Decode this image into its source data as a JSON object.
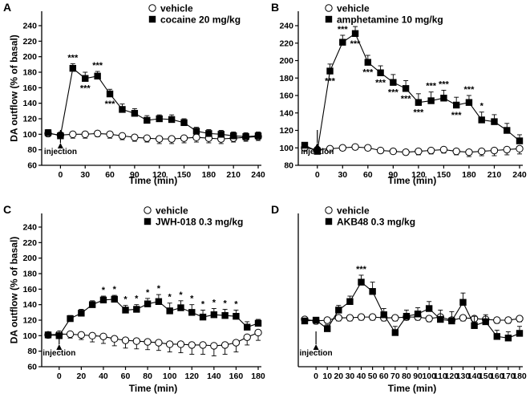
{
  "chart_data": [
    {
      "type": "line",
      "panel": "A",
      "ylabel": "DA outflow (% of basal)",
      "xlabel": "Time (min)",
      "xlim": [
        -15,
        240
      ],
      "ylim": [
        60,
        240
      ],
      "xticks": [
        0,
        30,
        60,
        90,
        120,
        150,
        180,
        210,
        240
      ],
      "yticks": [
        60,
        80,
        100,
        120,
        140,
        160,
        180,
        200,
        220,
        240
      ],
      "annotation": "injection",
      "annotation_x": 0,
      "series": [
        {
          "name": "vehicle",
          "marker": "open-circle",
          "x": [
            -15,
            0,
            15,
            30,
            45,
            60,
            75,
            90,
            105,
            120,
            135,
            150,
            165,
            180,
            195,
            210,
            225,
            240
          ],
          "y": [
            101,
            99,
            100,
            100,
            101,
            100,
            98,
            96,
            95,
            94,
            94,
            95,
            96,
            95,
            94,
            95,
            96,
            97
          ],
          "err": [
            4,
            4,
            5,
            5,
            4,
            5,
            5,
            5,
            5,
            6,
            6,
            6,
            6,
            6,
            6,
            5,
            5,
            5
          ]
        },
        {
          "name": "cocaine 20 mg/kg",
          "marker": "filled-square",
          "x": [
            -15,
            0,
            15,
            30,
            45,
            60,
            75,
            90,
            105,
            120,
            135,
            150,
            165,
            180,
            195,
            210,
            225,
            240
          ],
          "y": [
            102,
            98,
            185,
            172,
            175,
            152,
            132,
            127,
            118,
            120,
            119,
            115,
            104,
            101,
            100,
            98,
            97,
            98
          ],
          "err": [
            4,
            4,
            6,
            8,
            6,
            6,
            7,
            6,
            6,
            5,
            6,
            5,
            5,
            5,
            5,
            5,
            5,
            5
          ]
        }
      ],
      "significance": [
        {
          "x": 15,
          "label": "***",
          "pos": "above"
        },
        {
          "x": 30,
          "label": "***",
          "pos": "below"
        },
        {
          "x": 45,
          "label": "***",
          "pos": "above"
        },
        {
          "x": 60,
          "label": "***",
          "pos": "below"
        }
      ]
    },
    {
      "type": "line",
      "panel": "B",
      "ylabel": "",
      "xlabel": "Time (min)",
      "xlim": [
        -15,
        240
      ],
      "ylim": [
        80,
        240
      ],
      "xticks": [
        0,
        30,
        60,
        90,
        120,
        150,
        180,
        210,
        240
      ],
      "yticks": [
        80,
        100,
        120,
        140,
        160,
        180,
        200,
        220,
        240
      ],
      "annotation": "injection",
      "annotation_x": 0,
      "series": [
        {
          "name": "vehicle",
          "marker": "open-circle",
          "x": [
            -15,
            0,
            15,
            30,
            45,
            60,
            75,
            90,
            105,
            120,
            135,
            150,
            165,
            180,
            195,
            210,
            225,
            240
          ],
          "y": [
            100,
            98,
            99,
            100,
            101,
            100,
            97,
            96,
            95,
            96,
            97,
            98,
            96,
            95,
            96,
            97,
            98,
            99
          ],
          "err": [
            3,
            3,
            3,
            3,
            3,
            3,
            3,
            3,
            3,
            4,
            4,
            4,
            4,
            5,
            5,
            6,
            6,
            6
          ]
        },
        {
          "name": "amphetamine 10 mg/kg",
          "marker": "filled-square",
          "x": [
            -15,
            0,
            15,
            30,
            45,
            60,
            75,
            90,
            105,
            120,
            135,
            150,
            165,
            180,
            195,
            210,
            225,
            240
          ],
          "y": [
            103,
            96,
            188,
            221,
            231,
            198,
            186,
            175,
            168,
            152,
            154,
            157,
            149,
            152,
            132,
            130,
            120,
            108
          ],
          "err": [
            3,
            3,
            8,
            8,
            8,
            8,
            8,
            9,
            9,
            10,
            10,
            9,
            9,
            8,
            9,
            8,
            8,
            7
          ]
        }
      ],
      "significance": [
        {
          "x": 15,
          "label": "***",
          "pos": "below"
        },
        {
          "x": 30,
          "label": "***",
          "pos": "above"
        },
        {
          "x": 45,
          "label": "***",
          "pos": "below"
        },
        {
          "x": 60,
          "label": "***",
          "pos": "below"
        },
        {
          "x": 75,
          "label": "***",
          "pos": "below"
        },
        {
          "x": 90,
          "label": "***",
          "pos": "below"
        },
        {
          "x": 105,
          "label": "***",
          "pos": "below"
        },
        {
          "x": 120,
          "label": "***",
          "pos": "below"
        },
        {
          "x": 135,
          "label": "***",
          "pos": "above"
        },
        {
          "x": 150,
          "label": "***",
          "pos": "above"
        },
        {
          "x": 165,
          "label": "***",
          "pos": "below"
        },
        {
          "x": 180,
          "label": "***",
          "pos": "above"
        },
        {
          "x": 195,
          "label": "*",
          "pos": "above"
        }
      ]
    },
    {
      "type": "line",
      "panel": "C",
      "ylabel": "DA outflow (% of basal)",
      "xlabel": "Time (min)",
      "xlim": [
        -10,
        180
      ],
      "ylim": [
        60,
        240
      ],
      "xticks": [
        0,
        20,
        40,
        60,
        80,
        100,
        120,
        140,
        160,
        180
      ],
      "yticks": [
        60,
        80,
        100,
        120,
        140,
        160,
        180,
        200,
        220,
        240
      ],
      "annotation": "injection",
      "annotation_x": 0,
      "series": [
        {
          "name": "vehicle",
          "marker": "open-circle",
          "x": [
            -10,
            0,
            10,
            20,
            30,
            40,
            50,
            60,
            70,
            80,
            90,
            100,
            110,
            120,
            130,
            140,
            150,
            160,
            170,
            180
          ],
          "y": [
            101,
            102,
            102,
            101,
            100,
            99,
            96,
            94,
            93,
            92,
            91,
            89,
            89,
            88,
            88,
            87,
            88,
            91,
            98,
            104
          ],
          "err": [
            4,
            4,
            5,
            6,
            8,
            9,
            9,
            10,
            10,
            10,
            10,
            10,
            11,
            12,
            12,
            13,
            12,
            12,
            10,
            10
          ]
        },
        {
          "name": "JWH-018 0.3 mg/kg",
          "marker": "filled-square",
          "x": [
            -10,
            0,
            10,
            20,
            30,
            40,
            50,
            60,
            70,
            80,
            90,
            100,
            110,
            120,
            130,
            140,
            150,
            160,
            170,
            180
          ],
          "y": [
            101,
            100,
            122,
            129,
            140,
            146,
            147,
            133,
            134,
            141,
            144,
            132,
            136,
            130,
            124,
            127,
            126,
            125,
            111,
            116
          ],
          "err": [
            3,
            3,
            4,
            5,
            5,
            5,
            5,
            6,
            6,
            7,
            9,
            10,
            9,
            10,
            9,
            8,
            8,
            8,
            7,
            5
          ]
        }
      ],
      "significance": [
        {
          "x": 40,
          "label": "*",
          "pos": "above"
        },
        {
          "x": 50,
          "label": "*",
          "pos": "above"
        },
        {
          "x": 60,
          "label": "*",
          "pos": "above"
        },
        {
          "x": 70,
          "label": "*",
          "pos": "above"
        },
        {
          "x": 80,
          "label": "*",
          "pos": "above"
        },
        {
          "x": 90,
          "label": "*",
          "pos": "above"
        },
        {
          "x": 100,
          "label": "*",
          "pos": "above"
        },
        {
          "x": 110,
          "label": "*",
          "pos": "above"
        },
        {
          "x": 120,
          "label": "*",
          "pos": "above"
        },
        {
          "x": 130,
          "label": "*",
          "pos": "above"
        },
        {
          "x": 140,
          "label": "*",
          "pos": "above"
        },
        {
          "x": 150,
          "label": "*",
          "pos": "above"
        },
        {
          "x": 160,
          "label": "*",
          "pos": "above"
        }
      ]
    },
    {
      "type": "line",
      "panel": "D",
      "ylabel": "",
      "xlabel": "Time (min)",
      "xlim": [
        -10,
        180
      ],
      "ylim": [
        40,
        220
      ],
      "xticks": [
        0,
        10,
        20,
        30,
        40,
        50,
        60,
        70,
        80,
        90,
        100,
        110,
        120,
        130,
        140,
        150,
        160,
        170,
        180
      ],
      "yticks": [],
      "annotation": "injection",
      "annotation_x": 0,
      "series": [
        {
          "name": "vehicle",
          "marker": "open-circle",
          "x": [
            -10,
            0,
            10,
            20,
            30,
            40,
            50,
            60,
            70,
            80,
            90,
            100,
            110,
            120,
            130,
            140,
            150,
            160,
            170,
            180
          ],
          "y": [
            101,
            99,
            100,
            103,
            103,
            104,
            104,
            103,
            103,
            104,
            104,
            102,
            104,
            100,
            103,
            102,
            101,
            100,
            100,
            102
          ],
          "err": [
            4,
            4,
            4,
            4,
            4,
            4,
            4,
            4,
            4,
            4,
            4,
            4,
            4,
            4,
            4,
            4,
            4,
            4,
            4,
            4
          ]
        },
        {
          "name": "AKB48 0.3 mg/kg",
          "marker": "filled-square",
          "x": [
            -10,
            0,
            10,
            20,
            30,
            40,
            50,
            60,
            70,
            80,
            90,
            100,
            110,
            120,
            130,
            140,
            150,
            160,
            170,
            180
          ],
          "y": [
            99,
            100,
            89,
            113,
            124,
            149,
            137,
            107,
            84,
            105,
            108,
            115,
            101,
            99,
            123,
            93,
            98,
            79,
            77,
            83
          ],
          "err": [
            3,
            3,
            5,
            6,
            7,
            9,
            12,
            8,
            8,
            8,
            8,
            9,
            12,
            12,
            12,
            12,
            9,
            8,
            8,
            9
          ]
        }
      ],
      "significance": [
        {
          "x": 40,
          "label": "***",
          "pos": "above"
        }
      ]
    }
  ]
}
